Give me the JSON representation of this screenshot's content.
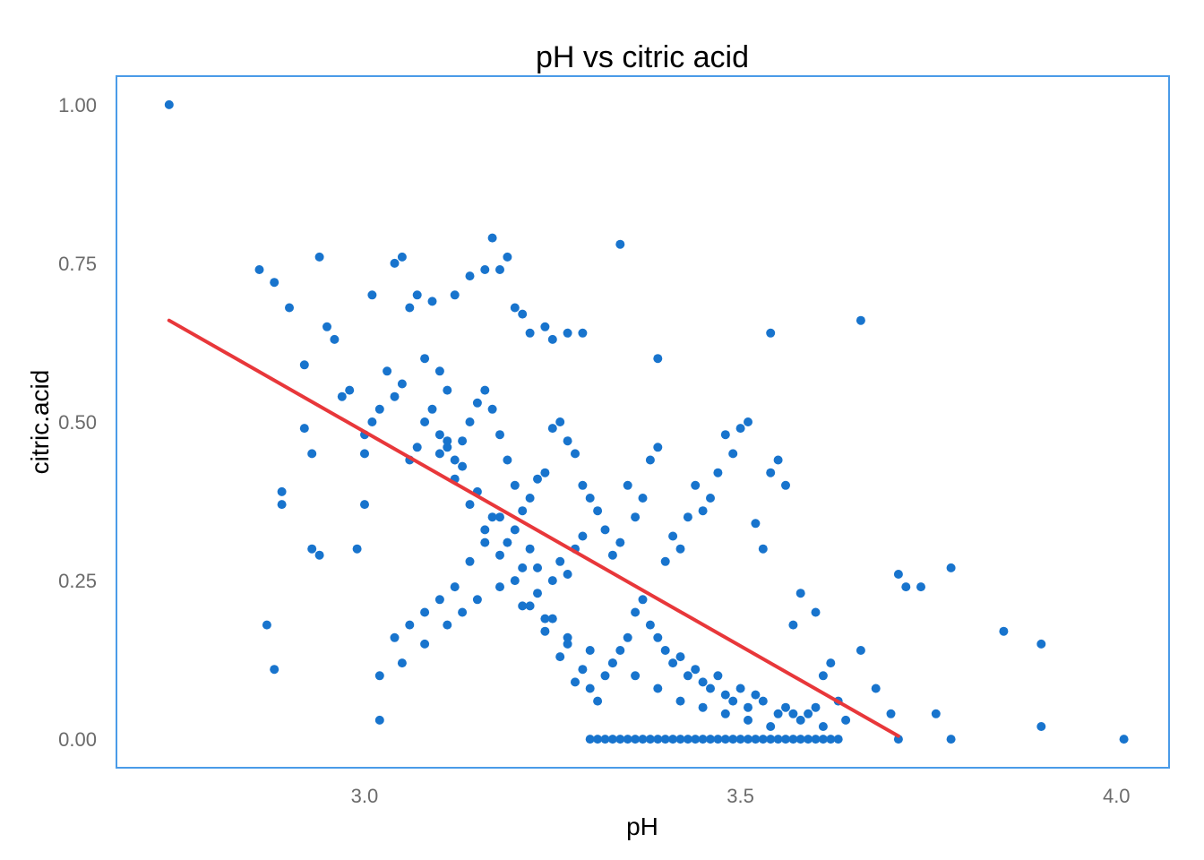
{
  "chart_data": {
    "type": "scatter",
    "title": "pH vs citric acid",
    "xlabel": "pH",
    "ylabel": "citric.acid",
    "xlim": [
      2.67,
      4.07
    ],
    "ylim": [
      -0.045,
      1.045
    ],
    "x_ticks": [
      3.0,
      3.5,
      4.0
    ],
    "x_tick_labels": [
      "3.0",
      "3.5",
      "4.0"
    ],
    "y_ticks": [
      0.0,
      0.25,
      0.5,
      0.75,
      1.0
    ],
    "y_tick_labels": [
      "0.00",
      "0.25",
      "0.50",
      "0.75",
      "1.00"
    ],
    "grid": false,
    "legend": "none",
    "point_color": "#1874CD",
    "line_color": "#E8373A",
    "frame_color": "#4A9BE8",
    "series": [
      {
        "kind": "points",
        "x": [
          2.74,
          2.86,
          2.88,
          2.9,
          2.94,
          2.92,
          2.92,
          2.93,
          2.93,
          2.94,
          2.89,
          2.89,
          2.87,
          2.88,
          2.99,
          3.0,
          3.0,
          3.01,
          3.02,
          3.04,
          3.05,
          3.06,
          3.07,
          3.08,
          3.09,
          3.1,
          3.11,
          3.12,
          3.14,
          3.16,
          3.17,
          3.18,
          3.19,
          3.2,
          3.21,
          3.22,
          3.24,
          3.25,
          3.27,
          3.29,
          3.34,
          3.39,
          3.54,
          3.66,
          3.71,
          3.72,
          3.74,
          3.78,
          3.85,
          3.9,
          3.9,
          4.01,
          3.78,
          3.76,
          3.71,
          3.7,
          3.68,
          3.66,
          3.62,
          3.61,
          3.6,
          3.58,
          3.57,
          3.56,
          3.55,
          3.54,
          3.53,
          3.52,
          3.51,
          3.5,
          3.49,
          3.48,
          3.47,
          3.46,
          3.45,
          3.44,
          3.43,
          3.42,
          3.41,
          3.4,
          3.39,
          3.38,
          3.37,
          3.36,
          3.35,
          3.34,
          3.33,
          3.32,
          3.31,
          3.3,
          3.29,
          3.28,
          3.27,
          3.26,
          3.25,
          3.24,
          3.23,
          3.22,
          3.21,
          3.2,
          3.19,
          3.18,
          3.17,
          3.16,
          3.15,
          3.14,
          3.13,
          3.12,
          3.11,
          3.1,
          3.09,
          3.08,
          3.07,
          3.06,
          3.05,
          3.04,
          3.03,
          3.02,
          3.01,
          3.0,
          2.98,
          2.97,
          2.96,
          2.95,
          3.02,
          3.05,
          3.08,
          3.11,
          3.13,
          3.15,
          3.18,
          3.21,
          3.24,
          3.27,
          3.3,
          3.33,
          3.36,
          3.39,
          3.42,
          3.45,
          3.48,
          3.51,
          3.54,
          3.57,
          3.6,
          3.63,
          3.3,
          3.31,
          3.32,
          3.33,
          3.34,
          3.35,
          3.36,
          3.37,
          3.38,
          3.39,
          3.4,
          3.41,
          3.42,
          3.43,
          3.44,
          3.45,
          3.46,
          3.47,
          3.48,
          3.49,
          3.5,
          3.51,
          3.52,
          3.53,
          3.54,
          3.55,
          3.56,
          3.57,
          3.58,
          3.59,
          3.6,
          3.61,
          3.62,
          3.63,
          3.28,
          3.29,
          3.26,
          3.27,
          3.25,
          3.23,
          3.22,
          3.2,
          3.18,
          3.16,
          3.14,
          3.12,
          3.1,
          3.08,
          3.06,
          3.04,
          3.36,
          3.37,
          3.38,
          3.39,
          3.4,
          3.41,
          3.42,
          3.43,
          3.44,
          3.45,
          3.46,
          3.47,
          3.48,
          3.49,
          3.5,
          3.51,
          3.52,
          3.53,
          3.55,
          3.56,
          3.58,
          3.59,
          3.61,
          3.64,
          3.32,
          3.33,
          3.34,
          3.35,
          3.3,
          3.31,
          3.28,
          3.29,
          3.26,
          3.27,
          3.24,
          3.25,
          3.22,
          3.23,
          3.2,
          3.21,
          3.18,
          3.19,
          3.16,
          3.17,
          3.14,
          3.15,
          3.12,
          3.13,
          3.1,
          3.11
        ],
        "y": [
          1.0,
          0.74,
          0.72,
          0.68,
          0.76,
          0.59,
          0.49,
          0.45,
          0.3,
          0.29,
          0.39,
          0.37,
          0.18,
          0.11,
          0.3,
          0.37,
          0.45,
          0.7,
          0.03,
          0.75,
          0.76,
          0.68,
          0.7,
          0.6,
          0.69,
          0.58,
          0.55,
          0.7,
          0.73,
          0.74,
          0.79,
          0.74,
          0.76,
          0.68,
          0.67,
          0.64,
          0.65,
          0.63,
          0.64,
          0.64,
          0.78,
          0.6,
          0.64,
          0.66,
          0.26,
          0.24,
          0.24,
          0.27,
          0.17,
          0.15,
          0.02,
          0.0,
          0.0,
          0.04,
          0.0,
          0.04,
          0.08,
          0.14,
          0.12,
          0.1,
          0.2,
          0.23,
          0.18,
          0.4,
          0.44,
          0.42,
          0.3,
          0.34,
          0.5,
          0.49,
          0.45,
          0.48,
          0.42,
          0.38,
          0.36,
          0.4,
          0.35,
          0.3,
          0.32,
          0.28,
          0.46,
          0.44,
          0.38,
          0.35,
          0.4,
          0.31,
          0.29,
          0.33,
          0.36,
          0.38,
          0.4,
          0.45,
          0.47,
          0.5,
          0.49,
          0.42,
          0.41,
          0.38,
          0.36,
          0.4,
          0.44,
          0.48,
          0.52,
          0.55,
          0.53,
          0.5,
          0.47,
          0.44,
          0.46,
          0.48,
          0.52,
          0.5,
          0.46,
          0.44,
          0.56,
          0.54,
          0.58,
          0.52,
          0.5,
          0.48,
          0.55,
          0.54,
          0.63,
          0.65,
          0.1,
          0.12,
          0.15,
          0.18,
          0.2,
          0.22,
          0.24,
          0.21,
          0.19,
          0.16,
          0.14,
          0.12,
          0.1,
          0.08,
          0.06,
          0.05,
          0.04,
          0.03,
          0.02,
          0.04,
          0.05,
          0.06,
          0.0,
          0.0,
          0.0,
          0.0,
          0.0,
          0.0,
          0.0,
          0.0,
          0.0,
          0.0,
          0.0,
          0.0,
          0.0,
          0.0,
          0.0,
          0.0,
          0.0,
          0.0,
          0.0,
          0.0,
          0.0,
          0.0,
          0.0,
          0.0,
          0.0,
          0.0,
          0.0,
          0.0,
          0.0,
          0.0,
          0.0,
          0.0,
          0.0,
          0.0,
          0.3,
          0.32,
          0.28,
          0.26,
          0.25,
          0.27,
          0.3,
          0.33,
          0.35,
          0.31,
          0.28,
          0.24,
          0.22,
          0.2,
          0.18,
          0.16,
          0.2,
          0.22,
          0.18,
          0.16,
          0.14,
          0.12,
          0.13,
          0.1,
          0.11,
          0.09,
          0.08,
          0.1,
          0.07,
          0.06,
          0.08,
          0.05,
          0.07,
          0.06,
          0.04,
          0.05,
          0.03,
          0.04,
          0.02,
          0.03,
          0.1,
          0.12,
          0.14,
          0.16,
          0.08,
          0.06,
          0.09,
          0.11,
          0.13,
          0.15,
          0.17,
          0.19,
          0.21,
          0.23,
          0.25,
          0.27,
          0.29,
          0.31,
          0.33,
          0.35,
          0.37,
          0.39,
          0.41,
          0.43,
          0.45,
          0.47
        ]
      },
      {
        "kind": "regression_line",
        "x": [
          2.74,
          3.71
        ],
        "y": [
          0.66,
          0.005
        ]
      }
    ]
  }
}
